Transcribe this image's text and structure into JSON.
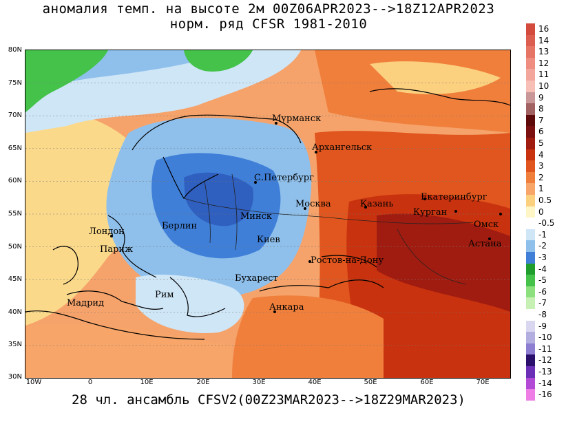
{
  "title_line1": "аномалия темп. на высоте 2м 00Z06APR2023-->18Z12APR2023",
  "title_line2": "норм. ряд CFSR 1981-2010",
  "bottom_caption": "28 чл. ансамбль CFSV2(00Z23MAR2023-->18Z29MAR2023)",
  "lat_labels": [
    "80N",
    "75N",
    "70N",
    "65N",
    "60N",
    "55N",
    "50N",
    "45N",
    "40N",
    "35N",
    "30N"
  ],
  "lon_labels": [
    "10W",
    "0",
    "10E",
    "20E",
    "30E",
    "40E",
    "50E",
    "60E",
    "70E"
  ],
  "cities": [
    {
      "name": "Мурманск"
    },
    {
      "name": "Архангельск"
    },
    {
      "name": "С.Петербург"
    },
    {
      "name": "Москва"
    },
    {
      "name": "Казань"
    },
    {
      "name": "Екатеринбург"
    },
    {
      "name": "Курган"
    },
    {
      "name": "Омск"
    },
    {
      "name": "Астана"
    },
    {
      "name": "Минск"
    },
    {
      "name": "Киев"
    },
    {
      "name": "Берлин"
    },
    {
      "name": "Лондон"
    },
    {
      "name": "Париж"
    },
    {
      "name": "Ростов-на-Дону"
    },
    {
      "name": "Бухарест"
    },
    {
      "name": "Рим"
    },
    {
      "name": "Мадрид"
    },
    {
      "name": "Анкара"
    }
  ],
  "legend": [
    {
      "label": "16",
      "color": "#d24b3c"
    },
    {
      "label": "14",
      "color": "#dc5e50"
    },
    {
      "label": "13",
      "color": "#e67566"
    },
    {
      "label": "12",
      "color": "#ee8d80"
    },
    {
      "label": "11",
      "color": "#f3a69b"
    },
    {
      "label": "10",
      "color": "#f7bfb6"
    },
    {
      "label": "9",
      "color": "#c99797"
    },
    {
      "label": "8",
      "color": "#a26262"
    },
    {
      "label": "7",
      "color": "#5e0a0a"
    },
    {
      "label": "6",
      "color": "#7a1010"
    },
    {
      "label": "5",
      "color": "#a01c10"
    },
    {
      "label": "4",
      "color": "#c8320e"
    },
    {
      "label": "3",
      "color": "#e0561e"
    },
    {
      "label": "2",
      "color": "#f07f3c"
    },
    {
      "label": "1",
      "color": "#f7a568"
    },
    {
      "label": "0.5",
      "color": "#fbd07e"
    },
    {
      "label": "0",
      "color": "#fff6c8"
    },
    {
      "label": "-0.5",
      "color": "#ffffff"
    },
    {
      "label": "-1",
      "color": "#cfe6f7"
    },
    {
      "label": "-2",
      "color": "#8fc0ec"
    },
    {
      "label": "-3",
      "color": "#3f7fd8"
    },
    {
      "label": "-4",
      "color": "#1f9e2e"
    },
    {
      "label": "-5",
      "color": "#44c24a"
    },
    {
      "label": "-6",
      "color": "#8de07e"
    },
    {
      "label": "-7",
      "color": "#c6f0b4"
    },
    {
      "label": "-8",
      "color": "#ffffff"
    },
    {
      "label": "-9",
      "color": "#d9d6f0"
    },
    {
      "label": "-10",
      "color": "#b2aee0"
    },
    {
      "label": "-11",
      "color": "#8e7ed2"
    },
    {
      "label": "-12",
      "color": "#2a0f6b"
    },
    {
      "label": "-13",
      "color": "#6a2fb6"
    },
    {
      "label": "-14",
      "color": "#b24ad6"
    },
    {
      "label": "-16",
      "color": "#ee7ee6"
    }
  ]
}
